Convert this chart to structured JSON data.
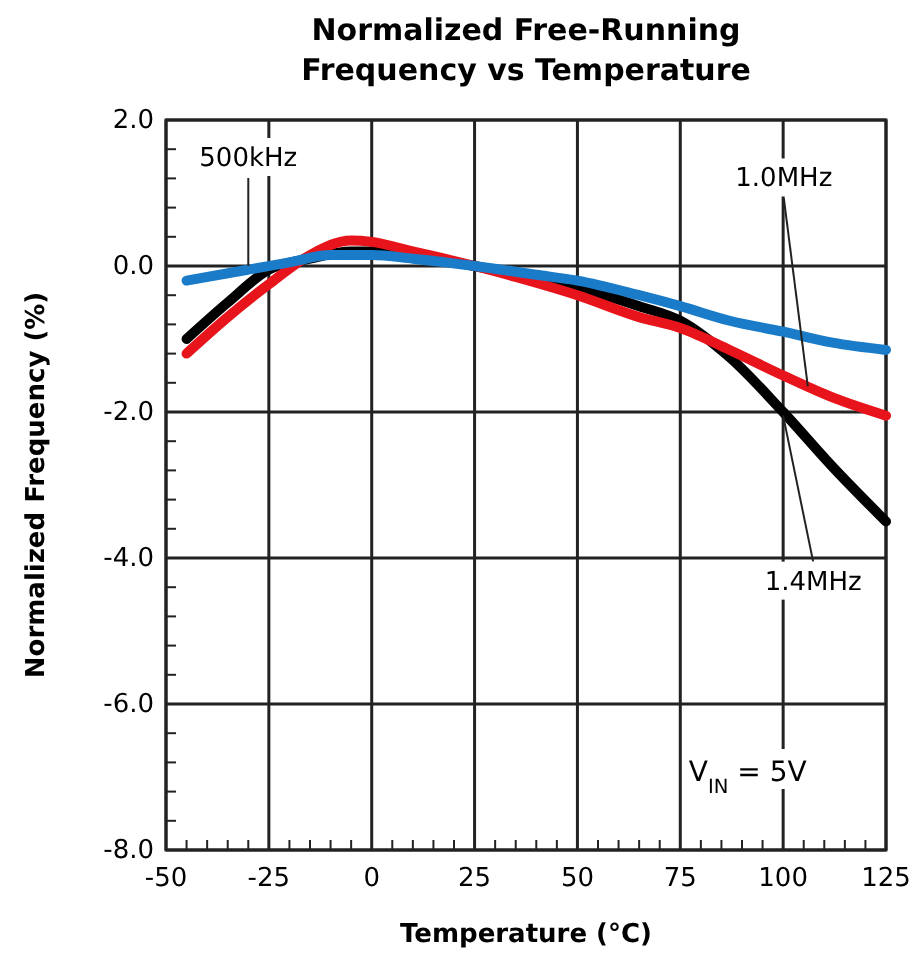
{
  "chart_data": {
    "type": "line",
    "title": "Normalized Free-Running Frequency vs Temperature",
    "xlabel": "Temperature (°C)",
    "ylabel": "Normalized Frequency (%)",
    "xlim": [
      -50,
      125
    ],
    "xticks": [
      -50,
      -25,
      0,
      25,
      50,
      75,
      100,
      125
    ],
    "ylim": [
      -8,
      2
    ],
    "yticks": [
      {
        "value": -8,
        "label": "-8.0"
      },
      {
        "value": -6,
        "label": "-6.0"
      },
      {
        "value": -4,
        "label": "-4.0"
      },
      {
        "value": -2,
        "label": "-2.0"
      },
      {
        "value": 0,
        "label": "0.0"
      },
      {
        "value": 2,
        "label": "2.0"
      }
    ],
    "grid": true,
    "line_style": "solid",
    "marker": "none",
    "series": [
      {
        "color": "#000000",
        "x": [
          -45,
          -35,
          -25,
          -15,
          -5,
          5,
          15,
          25,
          35,
          50,
          65,
          75,
          87,
          100,
          112,
          125
        ],
        "values": [
          -1.0,
          -0.5,
          -0.05,
          0.1,
          0.2,
          0.2,
          0.1,
          0,
          -0.12,
          -0.3,
          -0.55,
          -0.75,
          -1.25,
          -2.0,
          -2.75,
          -3.5
        ]
      },
      {
        "color": "#e8141c",
        "x": [
          -45,
          -35,
          -25,
          -15,
          -5,
          0,
          10,
          25,
          35,
          50,
          65,
          75,
          87,
          100,
          112,
          125
        ],
        "values": [
          -1.2,
          -0.7,
          -0.25,
          0.15,
          0.35,
          0.33,
          0.2,
          0,
          -0.15,
          -0.4,
          -0.7,
          -0.85,
          -1.15,
          -1.5,
          -1.8,
          -2.05
        ]
      },
      {
        "color": "#1a7cc8",
        "x": [
          -45,
          -30,
          -20,
          -10,
          0,
          10,
          25,
          40,
          50,
          65,
          75,
          87,
          100,
          112,
          125
        ],
        "values": [
          -0.2,
          -0.05,
          0.05,
          0.15,
          0.15,
          0.1,
          0,
          -0.12,
          -0.2,
          -0.4,
          -0.55,
          -0.75,
          -0.9,
          -1.05,
          -1.15
        ]
      }
    ],
    "annotations": [
      {
        "text": "500kHz",
        "x": -30,
        "y": 0
      },
      {
        "text": "1.0MHz",
        "x": 106,
        "y": -1.65
      },
      {
        "text": "1.4MHz",
        "x": 100,
        "y": -2.05
      },
      "V$_{IN}$ = 5V"
    ]
  }
}
